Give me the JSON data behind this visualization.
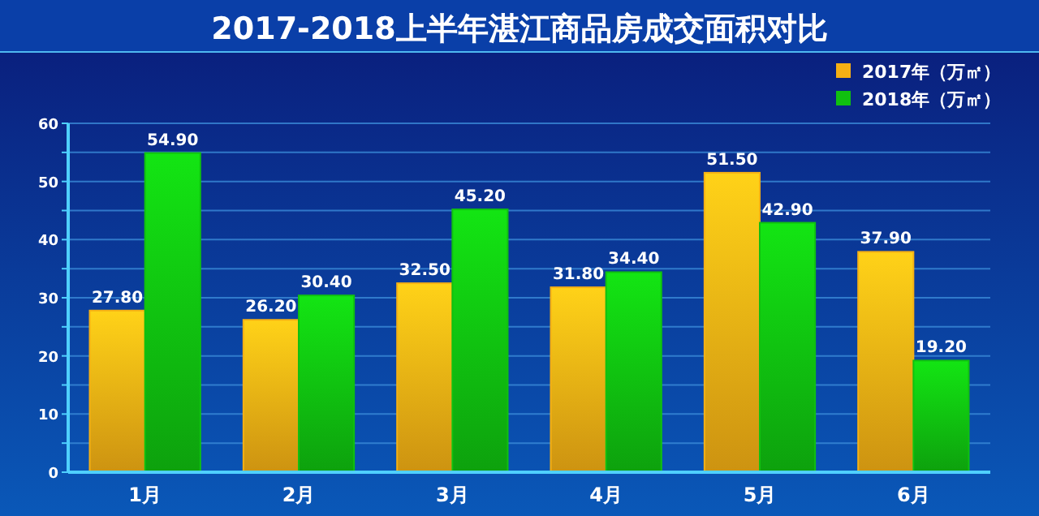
{
  "chart_data": {
    "type": "bar",
    "title": "2017-2018上半年湛江商品房成交面积对比",
    "categories": [
      "1月",
      "2月",
      "3月",
      "4月",
      "5月",
      "6月"
    ],
    "series": [
      {
        "name": "2017年（万㎡）",
        "color": "#f5b014",
        "values": [
          27.8,
          26.2,
          32.5,
          31.8,
          51.5,
          37.9
        ],
        "value_labels": [
          "27.80",
          "26.20",
          "32.50",
          "31.80",
          "51.50",
          "37.90"
        ]
      },
      {
        "name": "2018年（万㎡）",
        "color": "#10c010",
        "values": [
          54.9,
          30.4,
          45.2,
          34.4,
          42.9,
          19.2
        ],
        "value_labels": [
          "54.90",
          "30.40",
          "45.20",
          "34.40",
          "42.90",
          "19.20"
        ]
      }
    ],
    "ylim": [
      0,
      60
    ],
    "yticks": [
      0,
      {
        "value": 5,
        "label": null
      },
      10,
      {
        "value": 15,
        "label": null
      },
      20,
      {
        "value": 25,
        "label": null
      },
      30,
      {
        "value": 35,
        "label": null
      },
      40,
      {
        "value": 45,
        "label": null
      },
      50,
      {
        "value": 55,
        "label": null
      },
      60
    ],
    "grid": true,
    "legend": "top right"
  }
}
